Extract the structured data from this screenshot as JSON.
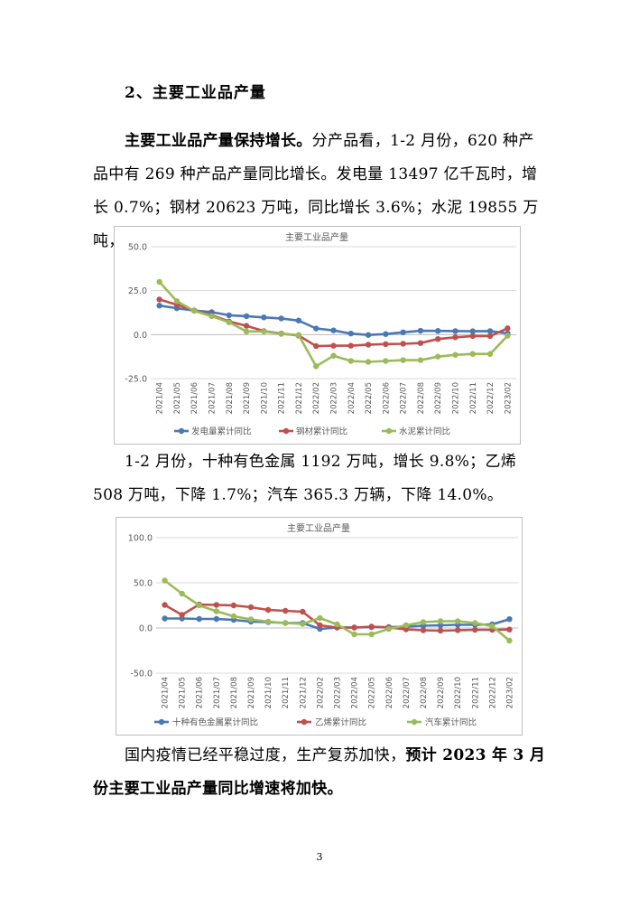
{
  "heading": "2、主要工业品产量",
  "p1": {
    "bold": "主要工业品产量保持增长。",
    "text": "分产品看，1-2 月份，620 种产品中有 269 种产品产量同比增长。发电量 13497 亿千瓦时，增长 0.7%；钢材 20623 万吨，同比增长 3.6%；水泥 19855 万吨，下降 0.6%。"
  },
  "p2": {
    "text": "1-2 月份，十种有色金属 1192 万吨，增长 9.8%；乙烯 508 万吨，下降 1.7%；汽车 365.3 万辆，下降 14.0%。"
  },
  "p3": {
    "text": "国内疫情已经平稳过度，生产复苏加快，",
    "bold": "预计 2023 年 3 月份主要工业品产量同比增速将加快。"
  },
  "page_number": "3",
  "colors": {
    "blue": "#4a78b5",
    "red": "#c0504d",
    "green": "#9bbb59",
    "grid": "#d9d9d9",
    "axis_text": "#595959"
  },
  "chart_data": [
    {
      "type": "line",
      "title": "主要工业品产量",
      "categories": [
        "2021/04",
        "2021/05",
        "2021/06",
        "2021/07",
        "2021/08",
        "2021/09",
        "2021/10",
        "2021/11",
        "2021/12",
        "2022/02",
        "2022/03",
        "2022/04",
        "2022/05",
        "2022/06",
        "2022/07",
        "2022/08",
        "2022/09",
        "2022/10",
        "2022/11",
        "2022/12",
        "2023/02"
      ],
      "ylim": [
        -25,
        50
      ],
      "yticks": [
        50.0,
        25.0,
        0.0,
        -25.0
      ],
      "ytick_labels": [
        "50.0",
        "25.0",
        "0.0",
        "-25.0"
      ],
      "grid": true,
      "legend_position": "bottom",
      "series": [
        {
          "name": "发电量累计同比",
          "color": "#4a78b5",
          "values": [
            16.5,
            15,
            13.7,
            12.8,
            11,
            10.5,
            9.8,
            9.2,
            8,
            3.5,
            2.4,
            0.6,
            -0.2,
            0.3,
            1.3,
            2.2,
            2.1,
            2,
            1.9,
            2,
            0.7
          ]
        },
        {
          "name": "钢材累计同比",
          "color": "#c0504d",
          "values": [
            20,
            17,
            13.7,
            11,
            7.5,
            5,
            2,
            0.6,
            -0.5,
            -6.5,
            -6.3,
            -6.3,
            -5.7,
            -5.4,
            -5.2,
            -4.8,
            -2.5,
            -1.5,
            -0.8,
            -0.8,
            3.6
          ]
        },
        {
          "name": "水泥累计同比",
          "color": "#9bbb59",
          "values": [
            30,
            19,
            13.5,
            10.5,
            7,
            1.8,
            1.8,
            0.4,
            -0.2,
            -18,
            -12,
            -15,
            -15.5,
            -15,
            -14.5,
            -14.5,
            -12.5,
            -11.5,
            -11,
            -11,
            -0.6
          ]
        }
      ]
    },
    {
      "type": "line",
      "title": "主要工业品产量",
      "categories": [
        "2021/04",
        "2021/05",
        "2021/06",
        "2021/07",
        "2021/08",
        "2021/09",
        "2021/10",
        "2021/11",
        "2021/12",
        "2022/02",
        "2022/03",
        "2022/04",
        "2022/05",
        "2022/06",
        "2022/07",
        "2022/08",
        "2022/09",
        "2022/10",
        "2022/11",
        "2022/12",
        "2023/02"
      ],
      "ylim": [
        -50,
        100
      ],
      "yticks": [
        100.0,
        50.0,
        0.0,
        -50.0
      ],
      "ytick_labels": [
        "100.0",
        "50.0",
        "0.0",
        "-50.0"
      ],
      "grid": true,
      "legend_position": "bottom",
      "series": [
        {
          "name": "十种有色金属累计同比",
          "color": "#4a78b5",
          "values": [
            10.5,
            10.5,
            10,
            10,
            9,
            7,
            6.5,
            5.5,
            5.5,
            -1,
            0.5,
            0.5,
            1,
            1,
            1.5,
            2.5,
            3,
            3.5,
            3.5,
            4,
            9.8
          ]
        },
        {
          "name": "乙烯累计同比",
          "color": "#c0504d",
          "values": [
            25.5,
            14.5,
            26,
            25.5,
            25,
            23,
            20,
            19,
            18,
            3,
            0.5,
            0.5,
            1.5,
            0.5,
            -1.5,
            -2.5,
            -3,
            -2.5,
            -2,
            -2,
            -1.7
          ]
        },
        {
          "name": "汽车累计同比",
          "color": "#9bbb59",
          "values": [
            52.5,
            38,
            25,
            18.5,
            13,
            9.5,
            7,
            5.5,
            4.5,
            11,
            4,
            -7,
            -7,
            -1,
            3,
            6.5,
            7.5,
            7.5,
            5.5,
            2,
            -14
          ]
        }
      ]
    }
  ]
}
